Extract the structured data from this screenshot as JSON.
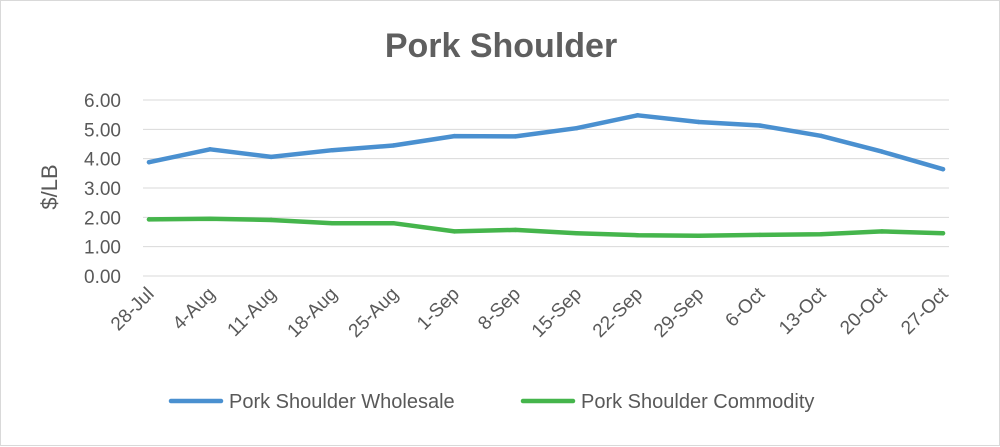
{
  "chart_data": {
    "type": "line",
    "title": "Pork Shoulder",
    "xlabel": "",
    "ylabel": "$/LB",
    "ylim": [
      0,
      6
    ],
    "yticks": [
      "0.00",
      "1.00",
      "2.00",
      "3.00",
      "4.00",
      "5.00",
      "6.00"
    ],
    "grid": true,
    "legend_position": "bottom",
    "categories": [
      "28-Jul",
      "4-Aug",
      "11-Aug",
      "18-Aug",
      "25-Aug",
      "1-Sep",
      "8-Sep",
      "15-Sep",
      "22-Sep",
      "29-Sep",
      "6-Oct",
      "13-Oct",
      "20-Oct",
      "27-Oct"
    ],
    "series": [
      {
        "name": "Pork Shoulder Wholesale",
        "color": "#4a90d0",
        "values": [
          3.88,
          4.32,
          4.06,
          4.29,
          4.45,
          4.77,
          4.76,
          5.04,
          5.48,
          5.25,
          5.13,
          4.78,
          4.24,
          3.64
        ]
      },
      {
        "name": "Pork Shoulder Commodity",
        "color": "#45b54c",
        "values": [
          1.93,
          1.95,
          1.91,
          1.8,
          1.8,
          1.52,
          1.57,
          1.46,
          1.39,
          1.37,
          1.4,
          1.42,
          1.52,
          1.46
        ]
      }
    ]
  }
}
